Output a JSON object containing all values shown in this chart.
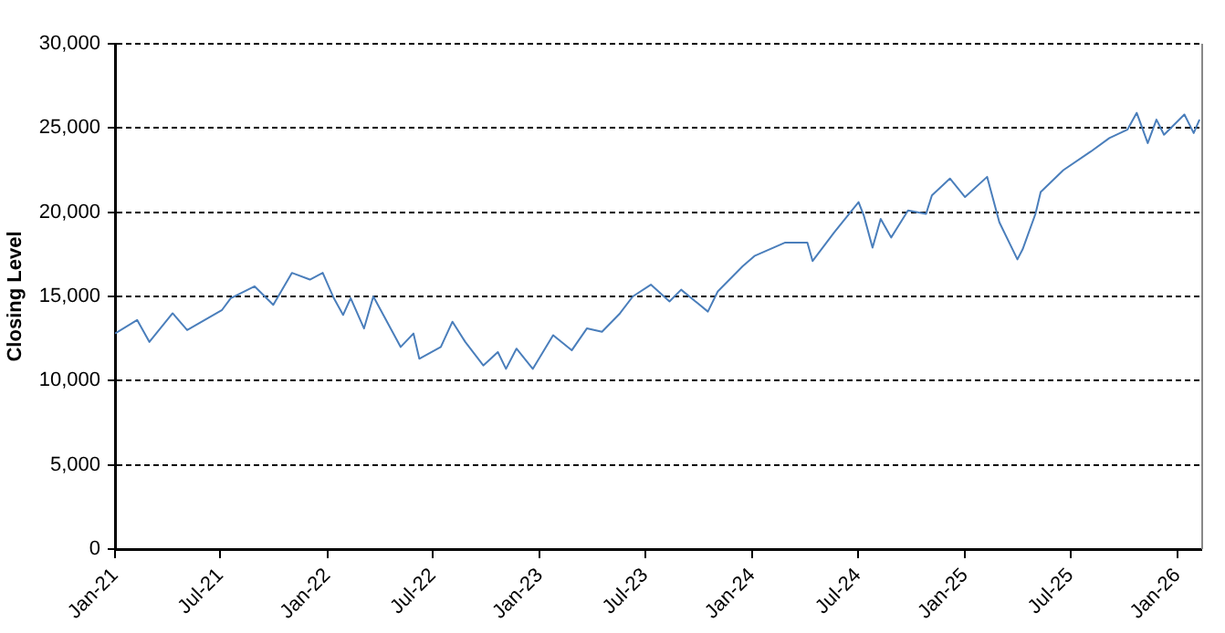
{
  "chart_data": {
    "type": "line",
    "ylabel": "Closing Level",
    "x": [
      "2021-01-01",
      "2021-02-08",
      "2021-03-01",
      "2021-04-10",
      "2021-05-05",
      "2021-07-04",
      "2021-07-19",
      "2021-08-29",
      "2021-09-30",
      "2021-11-01",
      "2021-12-02",
      "2021-12-24",
      "2022-01-12",
      "2022-01-28",
      "2022-02-10",
      "2022-03-05",
      "2022-03-21",
      "2022-05-07",
      "2022-05-29",
      "2022-06-08",
      "2022-07-15",
      "2022-08-04",
      "2022-08-26",
      "2022-09-26",
      "2022-10-21",
      "2022-11-04",
      "2022-11-22",
      "2022-12-20",
      "2023-01-24",
      "2023-02-25",
      "2023-03-23",
      "2023-04-18",
      "2023-05-19",
      "2023-06-10",
      "2023-07-11",
      "2023-08-12",
      "2023-09-01",
      "2023-10-17",
      "2023-11-03",
      "2023-12-16",
      "2024-01-05",
      "2024-02-27",
      "2024-04-05",
      "2024-04-14",
      "2024-05-21",
      "2024-07-02",
      "2024-07-11",
      "2024-07-26",
      "2024-08-09",
      "2024-08-27",
      "2024-09-25",
      "2024-10-26",
      "2024-11-05",
      "2024-12-06",
      "2025-01-01",
      "2025-02-08",
      "2025-03-01",
      "2025-04-01",
      "2025-04-10",
      "2025-05-02",
      "2025-05-11",
      "2025-06-19",
      "2025-08-05",
      "2025-09-06",
      "2025-10-07",
      "2025-10-23",
      "2025-11-11",
      "2025-11-26",
      "2025-12-09",
      "2026-01-13",
      "2026-01-29",
      "2026-02-08"
    ],
    "series": [
      {
        "color": "#4a7ebb",
        "values": [
          12800,
          13600,
          12300,
          14000,
          13000,
          14200,
          14900,
          15600,
          14500,
          16400,
          16000,
          16400,
          14900,
          13900,
          14900,
          13100,
          15000,
          12000,
          12800,
          11300,
          12000,
          13500,
          12300,
          10900,
          11700,
          10700,
          11900,
          10700,
          12700,
          11800,
          13100,
          12900,
          14000,
          15000,
          15700,
          14700,
          15400,
          14100,
          15300,
          16800,
          17400,
          18200,
          18200,
          17100,
          18800,
          20600,
          19800,
          17900,
          19600,
          18500,
          20100,
          19900,
          21000,
          22000,
          20900,
          22100,
          19400,
          17200,
          17800,
          19900,
          21200,
          22500,
          23600,
          24400,
          24900,
          25900,
          24100,
          25500,
          24600,
          25800,
          24700,
          25500
        ]
      }
    ],
    "xlim": [
      "2021-01-01",
      "2026-02-11"
    ],
    "xticks": [
      {
        "value": "2021-01-01",
        "label": "Jan-21"
      },
      {
        "value": "2021-07-01",
        "label": "Jul-21"
      },
      {
        "value": "2022-01-01",
        "label": "Jan-22"
      },
      {
        "value": "2022-07-01",
        "label": "Jul-22"
      },
      {
        "value": "2023-01-01",
        "label": "Jan-23"
      },
      {
        "value": "2023-07-01",
        "label": "Jul-23"
      },
      {
        "value": "2024-01-01",
        "label": "Jan-24"
      },
      {
        "value": "2024-07-01",
        "label": "Jul-24"
      },
      {
        "value": "2025-01-01",
        "label": "Jan-25"
      },
      {
        "value": "2025-07-01",
        "label": "Jul-25"
      },
      {
        "value": "2026-01-01",
        "label": "Jan-26"
      }
    ],
    "ylim": [
      0,
      30000
    ],
    "yticks": [
      {
        "value": 0,
        "label": "0"
      },
      {
        "value": 5000,
        "label": "5,000"
      },
      {
        "value": 10000,
        "label": "10,000"
      },
      {
        "value": 15000,
        "label": "15,000"
      },
      {
        "value": 20000,
        "label": "20,000"
      },
      {
        "value": 25000,
        "label": "25,000"
      },
      {
        "value": 30000,
        "label": "30,000"
      }
    ],
    "grid": "y",
    "marker": "none",
    "line_style": "solid"
  }
}
